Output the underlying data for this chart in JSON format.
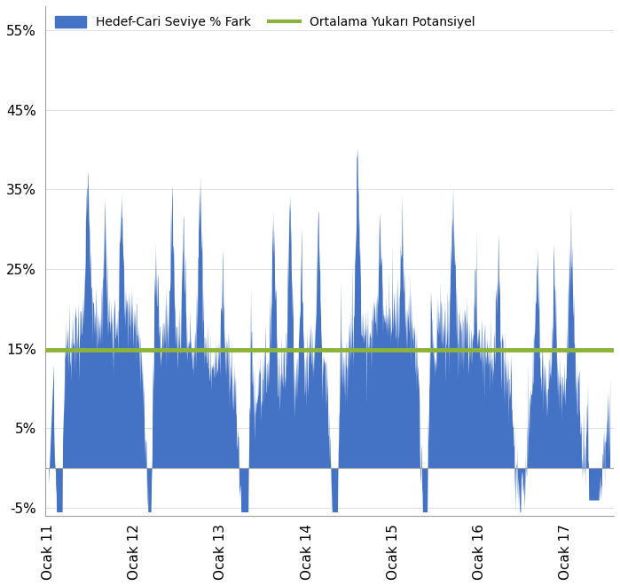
{
  "ylim": [
    -0.06,
    0.58
  ],
  "yticks": [
    -0.05,
    0.05,
    0.15,
    0.25,
    0.35,
    0.45,
    0.55
  ],
  "ytick_labels": [
    "-5%",
    "5%",
    "15%",
    "25%",
    "35%",
    "45%",
    "55%"
  ],
  "x_labels": [
    "Ocak 11",
    "Ocak 12",
    "Ocak 13",
    "Ocak 14",
    "Ocak 15",
    "Ocak 16",
    "Ocak 17"
  ],
  "avg_line_value": 0.148,
  "bar_color": "#4472C4",
  "line_color": "#8DB33A",
  "legend_bar_label": "Hedef-Cari Seviye % Fark",
  "legend_line_label": "Ortalama Yukarı Potansiyel",
  "background_color": "#FFFFFF",
  "num_points": 1565
}
